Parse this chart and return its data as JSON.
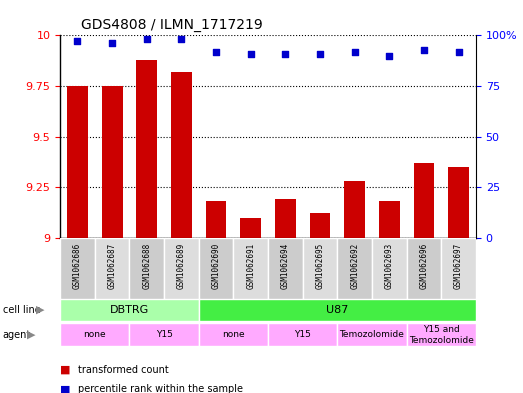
{
  "title": "GDS4808 / ILMN_1717219",
  "samples": [
    "GSM1062686",
    "GSM1062687",
    "GSM1062688",
    "GSM1062689",
    "GSM1062690",
    "GSM1062691",
    "GSM1062694",
    "GSM1062695",
    "GSM1062692",
    "GSM1062693",
    "GSM1062696",
    "GSM1062697"
  ],
  "transformed_count": [
    9.75,
    9.75,
    9.88,
    9.82,
    9.18,
    9.1,
    9.19,
    9.12,
    9.28,
    9.18,
    9.37,
    9.35
  ],
  "percentile_rank": [
    97,
    96,
    98,
    98,
    92,
    91,
    91,
    91,
    92,
    90,
    93,
    92
  ],
  "ylim_left": [
    9.0,
    10.0
  ],
  "ylim_right": [
    0,
    100
  ],
  "yticks_left": [
    9.0,
    9.25,
    9.5,
    9.75,
    10.0
  ],
  "yticks_right": [
    0,
    25,
    50,
    75,
    100
  ],
  "ytick_left_labels": [
    "9",
    "9.25",
    "9.5",
    "9.75",
    "10"
  ],
  "ytick_right_labels": [
    "0",
    "25",
    "50",
    "75",
    "100%"
  ],
  "bar_color": "#cc0000",
  "dot_color": "#0000cc",
  "bar_width": 0.6,
  "dot_size": 18,
  "cell_line_groups": [
    {
      "label": "DBTRG",
      "start": 0,
      "end": 4,
      "color": "#aaffaa"
    },
    {
      "label": "U87",
      "start": 4,
      "end": 12,
      "color": "#44ee44"
    }
  ],
  "agent_groups": [
    {
      "label": "none",
      "start": 0,
      "end": 2,
      "color": "#ffaaff"
    },
    {
      "label": "Y15",
      "start": 2,
      "end": 4,
      "color": "#ffaaff"
    },
    {
      "label": "none",
      "start": 4,
      "end": 6,
      "color": "#ffaaff"
    },
    {
      "label": "Y15",
      "start": 6,
      "end": 8,
      "color": "#ffaaff"
    },
    {
      "label": "Temozolomide",
      "start": 8,
      "end": 10,
      "color": "#ffaaff"
    },
    {
      "label": "Y15 and\nTemozolomide",
      "start": 10,
      "end": 12,
      "color": "#ffaaff"
    }
  ],
  "sample_box_colors": [
    "#cccccc",
    "#dddddd"
  ],
  "legend_labels": [
    "transformed count",
    "percentile rank within the sample"
  ],
  "legend_colors": [
    "#cc0000",
    "#0000cc"
  ]
}
